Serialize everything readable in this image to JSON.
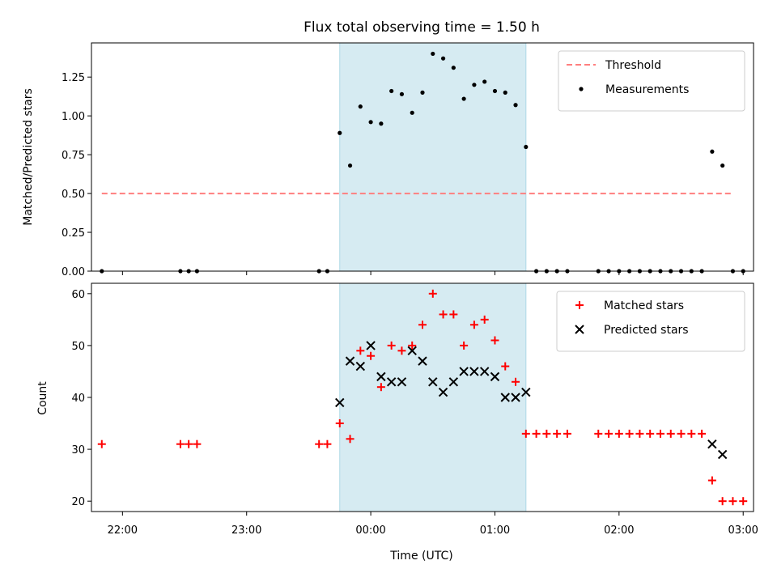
{
  "chart_data": [
    {
      "type": "scatter",
      "title": "Flux total observing time = 1.50 h",
      "xlabel": "",
      "ylabel": "Matched/Predicted stars",
      "xlim": [
        "21:45",
        "03:05"
      ],
      "ylim": [
        0,
        1.47
      ],
      "yticks": [
        "0.00",
        "0.25",
        "0.50",
        "0.75",
        "1.00",
        "1.25"
      ],
      "xticks": [
        "22:00",
        "23:00",
        "00:00",
        "01:00",
        "02:00",
        "03:00"
      ],
      "shaded_interval": [
        "23:45",
        "01:15"
      ],
      "legend_position": "top-right",
      "threshold": {
        "name": "Threshold",
        "value": 0.5,
        "x_range": [
          "21:50",
          "02:55"
        ],
        "color": "#ff7f7f"
      },
      "series": [
        {
          "name": "Measurements",
          "color": "#000000",
          "points": [
            {
              "x": "21:50",
              "y": 0
            },
            {
              "x": "22:28",
              "y": 0
            },
            {
              "x": "22:32",
              "y": 0
            },
            {
              "x": "22:36",
              "y": 0
            },
            {
              "x": "23:35",
              "y": 0
            },
            {
              "x": "23:39",
              "y": 0
            },
            {
              "x": "23:45",
              "y": 0.89
            },
            {
              "x": "23:50",
              "y": 0.68
            },
            {
              "x": "23:55",
              "y": 1.06
            },
            {
              "x": "00:00",
              "y": 0.96
            },
            {
              "x": "00:05",
              "y": 0.95
            },
            {
              "x": "00:10",
              "y": 1.16
            },
            {
              "x": "00:15",
              "y": 1.14
            },
            {
              "x": "00:20",
              "y": 1.02
            },
            {
              "x": "00:25",
              "y": 1.15
            },
            {
              "x": "00:30",
              "y": 1.4
            },
            {
              "x": "00:35",
              "y": 1.37
            },
            {
              "x": "00:40",
              "y": 1.31
            },
            {
              "x": "00:45",
              "y": 1.11
            },
            {
              "x": "00:50",
              "y": 1.2
            },
            {
              "x": "00:55",
              "y": 1.22
            },
            {
              "x": "01:00",
              "y": 1.16
            },
            {
              "x": "01:05",
              "y": 1.15
            },
            {
              "x": "01:10",
              "y": 1.07
            },
            {
              "x": "01:15",
              "y": 0.8
            },
            {
              "x": "01:20",
              "y": 0
            },
            {
              "x": "01:25",
              "y": 0
            },
            {
              "x": "01:30",
              "y": 0
            },
            {
              "x": "01:35",
              "y": 0
            },
            {
              "x": "01:50",
              "y": 0
            },
            {
              "x": "01:55",
              "y": 0
            },
            {
              "x": "02:00",
              "y": 0
            },
            {
              "x": "02:05",
              "y": 0
            },
            {
              "x": "02:10",
              "y": 0
            },
            {
              "x": "02:15",
              "y": 0
            },
            {
              "x": "02:20",
              "y": 0
            },
            {
              "x": "02:25",
              "y": 0
            },
            {
              "x": "02:30",
              "y": 0
            },
            {
              "x": "02:35",
              "y": 0
            },
            {
              "x": "02:40",
              "y": 0
            },
            {
              "x": "02:45",
              "y": 0.77
            },
            {
              "x": "02:50",
              "y": 0.68
            },
            {
              "x": "02:55",
              "y": 0
            },
            {
              "x": "03:00",
              "y": 0
            }
          ]
        }
      ]
    },
    {
      "type": "scatter",
      "title": "",
      "xlabel": "Time (UTC)",
      "ylabel": "Count",
      "xlim": [
        "21:45",
        "03:05"
      ],
      "ylim": [
        18,
        62
      ],
      "yticks": [
        "20",
        "30",
        "40",
        "50",
        "60"
      ],
      "xticks": [
        "22:00",
        "23:00",
        "00:00",
        "01:00",
        "02:00",
        "03:00"
      ],
      "shaded_interval": [
        "23:45",
        "01:15"
      ],
      "legend_position": "top-right",
      "series": [
        {
          "name": "Matched stars",
          "marker": "+",
          "color": "#ff0000",
          "points": [
            {
              "x": "21:50",
              "y": 31
            },
            {
              "x": "22:28",
              "y": 31
            },
            {
              "x": "22:32",
              "y": 31
            },
            {
              "x": "22:36",
              "y": 31
            },
            {
              "x": "23:35",
              "y": 31
            },
            {
              "x": "23:39",
              "y": 31
            },
            {
              "x": "23:45",
              "y": 35
            },
            {
              "x": "23:50",
              "y": 32
            },
            {
              "x": "23:55",
              "y": 49
            },
            {
              "x": "00:00",
              "y": 48
            },
            {
              "x": "00:05",
              "y": 42
            },
            {
              "x": "00:10",
              "y": 50
            },
            {
              "x": "00:15",
              "y": 49
            },
            {
              "x": "00:20",
              "y": 50
            },
            {
              "x": "00:25",
              "y": 54
            },
            {
              "x": "00:30",
              "y": 60
            },
            {
              "x": "00:35",
              "y": 56
            },
            {
              "x": "00:40",
              "y": 56
            },
            {
              "x": "00:45",
              "y": 50
            },
            {
              "x": "00:50",
              "y": 54
            },
            {
              "x": "00:55",
              "y": 55
            },
            {
              "x": "01:00",
              "y": 51
            },
            {
              "x": "01:05",
              "y": 46
            },
            {
              "x": "01:10",
              "y": 43
            },
            {
              "x": "01:15",
              "y": 33
            },
            {
              "x": "01:20",
              "y": 33
            },
            {
              "x": "01:25",
              "y": 33
            },
            {
              "x": "01:30",
              "y": 33
            },
            {
              "x": "01:35",
              "y": 33
            },
            {
              "x": "01:50",
              "y": 33
            },
            {
              "x": "01:55",
              "y": 33
            },
            {
              "x": "02:00",
              "y": 33
            },
            {
              "x": "02:05",
              "y": 33
            },
            {
              "x": "02:10",
              "y": 33
            },
            {
              "x": "02:15",
              "y": 33
            },
            {
              "x": "02:20",
              "y": 33
            },
            {
              "x": "02:25",
              "y": 33
            },
            {
              "x": "02:30",
              "y": 33
            },
            {
              "x": "02:35",
              "y": 33
            },
            {
              "x": "02:40",
              "y": 33
            },
            {
              "x": "02:45",
              "y": 24
            },
            {
              "x": "02:50",
              "y": 20
            },
            {
              "x": "02:55",
              "y": 20
            },
            {
              "x": "03:00",
              "y": 20
            }
          ]
        },
        {
          "name": "Predicted stars",
          "marker": "x",
          "color": "#000000",
          "points": [
            {
              "x": "23:45",
              "y": 39
            },
            {
              "x": "23:50",
              "y": 47
            },
            {
              "x": "23:55",
              "y": 46
            },
            {
              "x": "00:00",
              "y": 50
            },
            {
              "x": "00:05",
              "y": 44
            },
            {
              "x": "00:10",
              "y": 43
            },
            {
              "x": "00:15",
              "y": 43
            },
            {
              "x": "00:20",
              "y": 49
            },
            {
              "x": "00:25",
              "y": 47
            },
            {
              "x": "00:30",
              "y": 43
            },
            {
              "x": "00:35",
              "y": 41
            },
            {
              "x": "00:40",
              "y": 43
            },
            {
              "x": "00:45",
              "y": 45
            },
            {
              "x": "00:50",
              "y": 45
            },
            {
              "x": "00:55",
              "y": 45
            },
            {
              "x": "01:00",
              "y": 44
            },
            {
              "x": "01:05",
              "y": 40
            },
            {
              "x": "01:10",
              "y": 40
            },
            {
              "x": "01:15",
              "y": 41
            },
            {
              "x": "02:45",
              "y": 31
            },
            {
              "x": "02:50",
              "y": 29
            }
          ]
        }
      ]
    }
  ],
  "colors": {
    "shade": "#add8e6",
    "threshold": "#ff7f7f",
    "matched": "#ff0000",
    "predicted": "#000000",
    "measurement": "#000000"
  }
}
